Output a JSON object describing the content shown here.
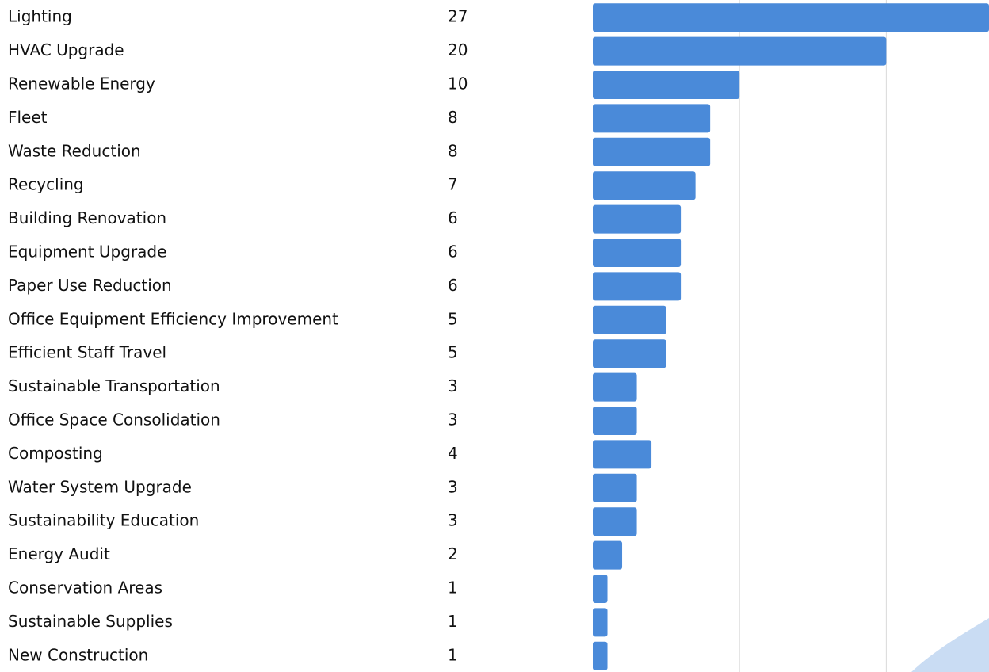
{
  "chart_data": {
    "type": "bar",
    "orientation": "horizontal",
    "categories": [
      "Lighting",
      "HVAC Upgrade",
      "Renewable Energy",
      "Fleet",
      "Waste Reduction",
      "Recycling",
      "Building Renovation",
      "Equipment Upgrade",
      "Paper Use Reduction",
      "Office Equipment Efficiency Improvement",
      "Efficient Staff Travel",
      "Sustainable Transportation",
      "Office Space Consolidation",
      "Composting",
      "Water System Upgrade",
      "Sustainability Education",
      "Energy Audit",
      "Conservation Areas",
      "Sustainable Supplies",
      "New Construction"
    ],
    "values": [
      27,
      20,
      10,
      8,
      8,
      7,
      6,
      6,
      6,
      5,
      5,
      3,
      3,
      4,
      3,
      3,
      2,
      1,
      1,
      1
    ],
    "color": "#4a8ad9",
    "xlim": [
      0,
      27
    ],
    "xticks": [
      10,
      20
    ],
    "grid": true
  }
}
